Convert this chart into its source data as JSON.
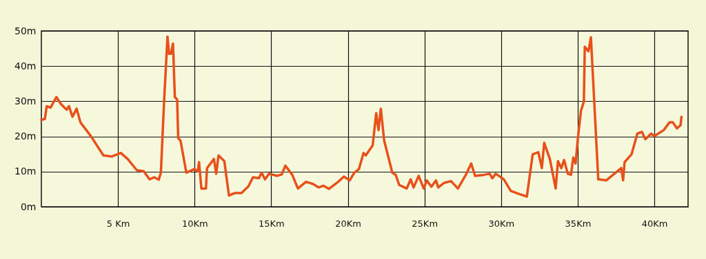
{
  "chart_data": {
    "type": "line",
    "x": [
      0,
      0.23,
      0.35,
      0.6,
      0.98,
      1.28,
      1.65,
      1.8,
      2.03,
      2.3,
      2.55,
      3.23,
      4.05,
      4.58,
      5.18,
      5.63,
      6.23,
      6.68,
      7.06,
      7.36,
      7.66,
      7.8,
      8.0,
      8.23,
      8.33,
      8.45,
      8.59,
      8.71,
      8.86,
      8.93,
      9.08,
      9.46,
      9.98,
      10.21,
      10.29,
      10.44,
      10.74,
      10.81,
      11.26,
      11.41,
      11.56,
      11.94,
      12.24,
      12.61,
      13.06,
      13.51,
      13.81,
      14.19,
      14.37,
      14.59,
      14.86,
      15.39,
      15.69,
      15.92,
      16.37,
      16.74,
      17.27,
      17.72,
      18.09,
      18.39,
      18.77,
      19.37,
      19.74,
      20.12,
      20.42,
      20.72,
      21.02,
      21.17,
      21.62,
      21.85,
      22.0,
      22.15,
      22.37,
      22.9,
      23.12,
      23.35,
      23.84,
      24.1,
      24.29,
      24.62,
      24.95,
      25.15,
      25.45,
      25.75,
      25.9,
      26.28,
      26.73,
      27.18,
      27.7,
      28.05,
      28.3,
      28.9,
      29.25,
      29.43,
      29.65,
      30.18,
      30.63,
      31.08,
      31.68,
      32.06,
      32.43,
      32.66,
      32.81,
      33.18,
      33.56,
      33.71,
      33.93,
      34.11,
      34.35,
      34.56,
      34.71,
      34.86,
      35.01,
      35.21,
      35.4,
      35.46,
      35.7,
      35.86,
      36.34,
      36.86,
      37.39,
      37.84,
      37.96,
      38.06,
      38.51,
      38.89,
      39.19,
      39.41,
      39.79,
      40.01,
      40.61,
      40.99,
      41.21,
      41.47,
      41.71,
      41.77
    ],
    "series": [
      {
        "color": "#e8501a",
        "values": [
          24.7,
          25.0,
          28.6,
          28.2,
          31.2,
          29.2,
          27.6,
          28.6,
          25.6,
          27.9,
          24.0,
          20.1,
          14.6,
          14.3,
          15.3,
          13.6,
          10.4,
          10.1,
          7.8,
          8.4,
          7.7,
          9.7,
          29.2,
          48.4,
          43.5,
          43.5,
          46.4,
          31.2,
          30.5,
          19.5,
          18.8,
          9.7,
          10.7,
          10.1,
          12.7,
          5.2,
          5.2,
          11.0,
          13.6,
          9.4,
          14.6,
          13.0,
          3.2,
          3.9,
          3.9,
          5.8,
          8.4,
          8.1,
          9.7,
          7.8,
          9.4,
          8.8,
          9.2,
          11.7,
          9.1,
          5.2,
          7.1,
          6.5,
          5.5,
          6.0,
          5.1,
          7.1,
          8.6,
          7.5,
          9.7,
          10.7,
          15.3,
          14.6,
          17.5,
          26.6,
          21.8,
          27.9,
          18.8,
          9.7,
          9.1,
          6.2,
          5.2,
          7.8,
          5.5,
          8.8,
          5.2,
          7.5,
          5.7,
          7.5,
          5.5,
          6.8,
          7.3,
          5.2,
          9.1,
          12.3,
          8.8,
          9.1,
          9.4,
          8.1,
          9.4,
          7.8,
          4.5,
          3.8,
          2.9,
          14.9,
          15.5,
          11.0,
          18.2,
          13.6,
          5.2,
          13.0,
          11.0,
          13.3,
          9.4,
          9.1,
          14.0,
          12.3,
          19.5,
          27.3,
          29.9,
          45.5,
          44.2,
          48.2,
          7.8,
          7.5,
          9.4,
          11.0,
          7.5,
          12.7,
          14.9,
          20.8,
          21.3,
          19.2,
          20.8,
          20.1,
          21.8,
          24.0,
          24.0,
          22.3,
          23.2,
          25.6
        ]
      }
    ],
    "xlim": [
      0,
      42.2
    ],
    "xticks": [
      {
        "value": 5,
        "label": "5 Km"
      },
      {
        "value": 10,
        "label": "10Km"
      },
      {
        "value": 15,
        "label": "15Km"
      },
      {
        "value": 20,
        "label": "20Km"
      },
      {
        "value": 25,
        "label": "25Km"
      },
      {
        "value": 30,
        "label": "30Km"
      },
      {
        "value": 35,
        "label": "35Km"
      },
      {
        "value": 40,
        "label": "40Km"
      }
    ],
    "ylim": [
      0,
      50
    ],
    "yticks": [
      {
        "value": 0,
        "label": "0m"
      },
      {
        "value": 10,
        "label": "10m"
      },
      {
        "value": 20,
        "label": "20m"
      },
      {
        "value": 30,
        "label": "30m"
      },
      {
        "value": 40,
        "label": "40m"
      },
      {
        "value": 50,
        "label": "50m"
      }
    ],
    "grid": true,
    "marker": "none",
    "line_style": "solid"
  }
}
